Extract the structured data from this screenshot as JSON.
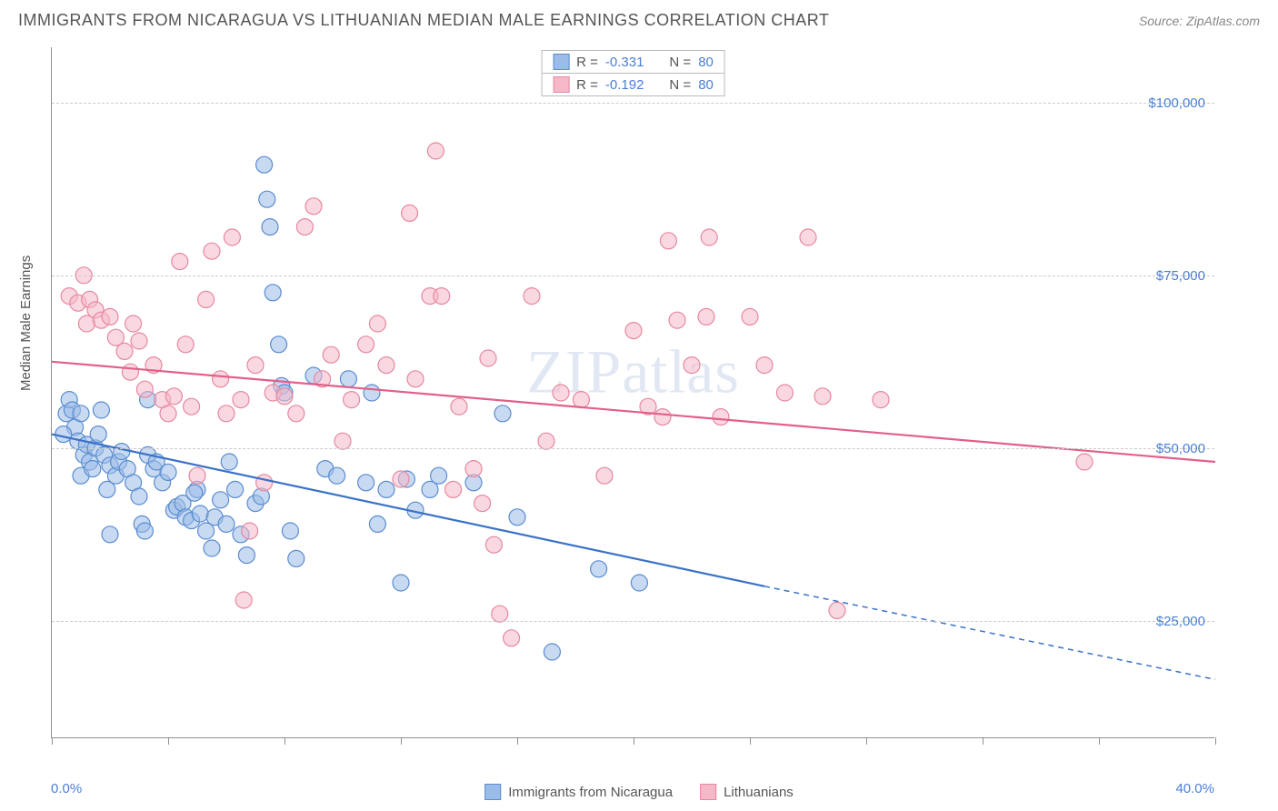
{
  "title": "IMMIGRANTS FROM NICARAGUA VS LITHUANIAN MEDIAN MALE EARNINGS CORRELATION CHART",
  "source": "Source: ZipAtlas.com",
  "watermark": "ZIPatlas",
  "ylabel": "Median Male Earnings",
  "chart": {
    "type": "scatter",
    "xlim": [
      0,
      40
    ],
    "ylim": [
      8000,
      108000
    ],
    "yticks": [
      25000,
      50000,
      75000,
      100000
    ],
    "ytick_labels": [
      "$25,000",
      "$50,000",
      "$75,000",
      "$100,000"
    ],
    "xtick_positions": [
      0,
      4,
      8,
      12,
      16,
      20,
      24,
      28,
      32,
      36,
      40
    ],
    "xaxis_left_label": "0.0%",
    "xaxis_right_label": "40.0%",
    "grid_color": "#cccccc",
    "background_color": "#ffffff",
    "marker_radius": 9,
    "marker_opacity": 0.55,
    "line_width": 2.2
  },
  "series": [
    {
      "name": "Immigrants from Nicaragua",
      "color_fill": "#9bbce8",
      "color_stroke": "#5a8cd0",
      "line_color": "#3a72c8",
      "R": "-0.331",
      "N": "80",
      "trend": {
        "x1": 0,
        "y1": 52000,
        "x2": 24.5,
        "y2": 30000,
        "x2_dash": 40,
        "y2_dash": 16500
      },
      "points": [
        [
          0.5,
          55000
        ],
        [
          0.6,
          57000
        ],
        [
          0.7,
          55500
        ],
        [
          0.8,
          53000
        ],
        [
          0.9,
          51000
        ],
        [
          1.0,
          55000
        ],
        [
          1.1,
          49000
        ],
        [
          1.2,
          50500
        ],
        [
          1.0,
          46000
        ],
        [
          1.3,
          48000
        ],
        [
          1.4,
          47000
        ],
        [
          1.5,
          50000
        ],
        [
          1.6,
          52000
        ],
        [
          1.8,
          49000
        ],
        [
          2.0,
          47500
        ],
        [
          2.2,
          46000
        ],
        [
          2.3,
          48000
        ],
        [
          2.4,
          49500
        ],
        [
          2.6,
          47000
        ],
        [
          2.8,
          45000
        ],
        [
          3.0,
          43000
        ],
        [
          3.1,
          39000
        ],
        [
          3.3,
          49000
        ],
        [
          3.5,
          47000
        ],
        [
          3.3,
          57000
        ],
        [
          3.6,
          48000
        ],
        [
          3.8,
          45000
        ],
        [
          4.0,
          46500
        ],
        [
          4.2,
          41000
        ],
        [
          4.3,
          41500
        ],
        [
          4.5,
          42000
        ],
        [
          4.6,
          40000
        ],
        [
          4.8,
          39500
        ],
        [
          5.0,
          44000
        ],
        [
          5.1,
          40500
        ],
        [
          5.3,
          38000
        ],
        [
          5.6,
          40000
        ],
        [
          5.8,
          42500
        ],
        [
          6.0,
          39000
        ],
        [
          6.3,
          44000
        ],
        [
          6.5,
          37500
        ],
        [
          6.7,
          34500
        ],
        [
          7.0,
          42000
        ],
        [
          7.2,
          43000
        ],
        [
          7.3,
          91000
        ],
        [
          7.4,
          86000
        ],
        [
          7.5,
          82000
        ],
        [
          7.6,
          72500
        ],
        [
          7.8,
          65000
        ],
        [
          7.9,
          59000
        ],
        [
          8.0,
          58000
        ],
        [
          8.2,
          38000
        ],
        [
          8.4,
          34000
        ],
        [
          9.0,
          60500
        ],
        [
          9.4,
          47000
        ],
        [
          9.8,
          46000
        ],
        [
          10.2,
          60000
        ],
        [
          10.8,
          45000
        ],
        [
          11.0,
          58000
        ],
        [
          11.2,
          39000
        ],
        [
          11.5,
          44000
        ],
        [
          12.0,
          30500
        ],
        [
          12.2,
          45500
        ],
        [
          12.5,
          41000
        ],
        [
          13.0,
          44000
        ],
        [
          13.3,
          46000
        ],
        [
          14.5,
          45000
        ],
        [
          15.5,
          55000
        ],
        [
          16.0,
          40000
        ],
        [
          17.2,
          20500
        ],
        [
          18.8,
          32500
        ],
        [
          20.2,
          30500
        ],
        [
          2.0,
          37500
        ],
        [
          3.2,
          38000
        ],
        [
          4.9,
          43500
        ],
        [
          5.5,
          35500
        ],
        [
          1.7,
          55500
        ],
        [
          6.1,
          48000
        ],
        [
          0.4,
          52000
        ],
        [
          1.9,
          44000
        ]
      ]
    },
    {
      "name": "Lithuanians",
      "color_fill": "#f5b8c8",
      "color_stroke": "#e688a0",
      "line_color": "#e26088",
      "R": "-0.192",
      "N": "80",
      "trend": {
        "x1": 0,
        "y1": 62500,
        "x2": 40,
        "y2": 48000,
        "x2_dash": 40,
        "y2_dash": 48000
      },
      "points": [
        [
          0.6,
          72000
        ],
        [
          0.9,
          71000
        ],
        [
          1.1,
          75000
        ],
        [
          1.2,
          68000
        ],
        [
          1.3,
          71500
        ],
        [
          1.5,
          70000
        ],
        [
          1.7,
          68500
        ],
        [
          2.0,
          69000
        ],
        [
          2.2,
          66000
        ],
        [
          2.5,
          64000
        ],
        [
          2.7,
          61000
        ],
        [
          2.8,
          68000
        ],
        [
          3.0,
          65500
        ],
        [
          3.2,
          58500
        ],
        [
          3.5,
          62000
        ],
        [
          3.8,
          57000
        ],
        [
          4.0,
          55000
        ],
        [
          4.2,
          57500
        ],
        [
          4.4,
          77000
        ],
        [
          4.8,
          56000
        ],
        [
          5.0,
          46000
        ],
        [
          5.3,
          71500
        ],
        [
          5.5,
          78500
        ],
        [
          5.8,
          60000
        ],
        [
          6.0,
          55000
        ],
        [
          6.2,
          80500
        ],
        [
          6.5,
          57000
        ],
        [
          6.8,
          38000
        ],
        [
          7.0,
          62000
        ],
        [
          7.3,
          45000
        ],
        [
          7.6,
          58000
        ],
        [
          8.0,
          57500
        ],
        [
          8.4,
          55000
        ],
        [
          8.7,
          82000
        ],
        [
          9.0,
          85000
        ],
        [
          9.3,
          60000
        ],
        [
          9.6,
          63500
        ],
        [
          10.0,
          51000
        ],
        [
          10.3,
          57000
        ],
        [
          10.8,
          65000
        ],
        [
          11.2,
          68000
        ],
        [
          11.5,
          62000
        ],
        [
          12.0,
          45500
        ],
        [
          12.3,
          84000
        ],
        [
          12.5,
          60000
        ],
        [
          13.0,
          72000
        ],
        [
          13.2,
          93000
        ],
        [
          13.4,
          72000
        ],
        [
          13.8,
          44000
        ],
        [
          14.0,
          56000
        ],
        [
          14.5,
          47000
        ],
        [
          14.8,
          42000
        ],
        [
          15.0,
          63000
        ],
        [
          15.2,
          36000
        ],
        [
          15.4,
          26000
        ],
        [
          15.8,
          22500
        ],
        [
          16.5,
          72000
        ],
        [
          17.0,
          51000
        ],
        [
          17.5,
          58000
        ],
        [
          18.2,
          57000
        ],
        [
          19.0,
          46000
        ],
        [
          20.0,
          67000
        ],
        [
          20.5,
          56000
        ],
        [
          21.0,
          54500
        ],
        [
          21.2,
          80000
        ],
        [
          21.5,
          68500
        ],
        [
          22.0,
          62000
        ],
        [
          22.5,
          69000
        ],
        [
          22.6,
          80500
        ],
        [
          23.0,
          54500
        ],
        [
          24.0,
          69000
        ],
        [
          24.5,
          62000
        ],
        [
          25.2,
          58000
        ],
        [
          26.0,
          80500
        ],
        [
          26.5,
          57500
        ],
        [
          27.0,
          26500
        ],
        [
          28.5,
          57000
        ],
        [
          35.5,
          48000
        ],
        [
          4.6,
          65000
        ],
        [
          6.6,
          28000
        ]
      ]
    }
  ],
  "legend_top_rows": [
    {
      "swatch_fill": "#9bbce8",
      "swatch_stroke": "#5a8cd0",
      "r_label": "R = ",
      "r_val": "-0.331",
      "n_label": "N = ",
      "n_val": "80"
    },
    {
      "swatch_fill": "#f5b8c8",
      "swatch_stroke": "#e688a0",
      "r_label": "R = ",
      "r_val": "-0.192",
      "n_label": "N = ",
      "n_val": "80"
    }
  ],
  "legend_bottom": [
    {
      "swatch_fill": "#9bbce8",
      "swatch_stroke": "#5a8cd0",
      "label": "Immigrants from Nicaragua"
    },
    {
      "swatch_fill": "#f5b8c8",
      "swatch_stroke": "#e688a0",
      "label": "Lithuanians"
    }
  ]
}
